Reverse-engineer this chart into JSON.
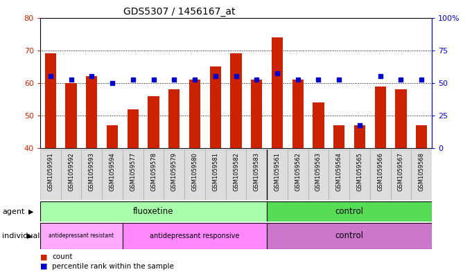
{
  "title": "GDS5307 / 1456167_at",
  "samples": [
    "GSM1059591",
    "GSM1059592",
    "GSM1059593",
    "GSM1059594",
    "GSM1059577",
    "GSM1059578",
    "GSM1059579",
    "GSM1059580",
    "GSM1059581",
    "GSM1059582",
    "GSM1059583",
    "GSM1059561",
    "GSM1059562",
    "GSM1059563",
    "GSM1059564",
    "GSM1059565",
    "GSM1059566",
    "GSM1059567",
    "GSM1059568"
  ],
  "bar_values": [
    69,
    60,
    62,
    47,
    52,
    56,
    58,
    61,
    65,
    69,
    61,
    74,
    61,
    54,
    47,
    47,
    59,
    58,
    47
  ],
  "blue_values": [
    62,
    61,
    62,
    60,
    61,
    61,
    61,
    61,
    62,
    62,
    61,
    63,
    61,
    61,
    61,
    47,
    62,
    61,
    61
  ],
  "y_min": 40,
  "y_max": 80,
  "y_ticks_left": [
    40,
    50,
    60,
    70,
    80
  ],
  "y_ticks_right_vals": [
    0,
    25,
    50,
    75,
    100
  ],
  "y_ticks_right_labels": [
    "0",
    "25",
    "50",
    "75",
    "100%"
  ],
  "bar_color": "#CC2200",
  "blue_color": "#0000CC",
  "bar_width": 0.55,
  "fluox_color": "#AAFFAA",
  "ctrl_agent_color": "#55DD55",
  "resist_color": "#FFAAFF",
  "responsive_color": "#FF88FF",
  "ctrl_indiv_color": "#CC77CC",
  "bg_color": "#FFFFFF",
  "tick_bg_color": "#DDDDDD"
}
